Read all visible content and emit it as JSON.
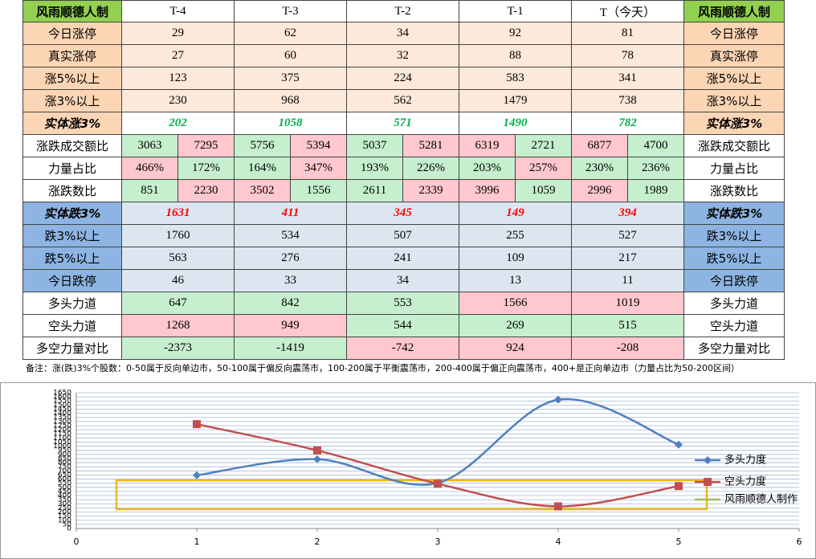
{
  "table": {
    "header": [
      "风雨顺德人制",
      "T-4",
      "T-3",
      "T-2",
      "T-1",
      "T（今天）",
      "风雨顺德人制"
    ],
    "rows": [
      {
        "label": "今日涨停",
        "values": [
          29,
          62,
          34,
          92,
          81
        ]
      },
      {
        "label": "真实涨停",
        "values": [
          27,
          60,
          32,
          88,
          78
        ]
      },
      {
        "label": "涨5%以上",
        "values": [
          123,
          375,
          224,
          583,
          341
        ]
      },
      {
        "label": "涨3%以上",
        "values": [
          230,
          968,
          562,
          1479,
          738
        ]
      },
      {
        "label": "实体涨3%",
        "values": [
          202,
          1058,
          571,
          1490,
          782
        ]
      },
      {
        "label": "涨跌成交额比",
        "values": [
          [
            3063,
            7295
          ],
          [
            5756,
            5394
          ],
          [
            5037,
            5281
          ],
          [
            6319,
            2721
          ],
          [
            6877,
            4700
          ]
        ],
        "colors": [
          [
            "#c6efce",
            "#ffc7ce"
          ],
          [
            "#c6efce",
            "#ffc7ce"
          ],
          [
            "#c6efce",
            "#ffc7ce"
          ],
          [
            "#ffc7ce",
            "#c6efce"
          ],
          [
            "#ffc7ce",
            "#c6efce"
          ]
        ]
      },
      {
        "label": "力量占比",
        "values": [
          [
            "466%",
            "172%"
          ],
          [
            "164%",
            "347%"
          ],
          [
            "193%",
            "226%"
          ],
          [
            "203%",
            "257%"
          ],
          [
            "230%",
            "236%"
          ]
        ],
        "colors": [
          [
            "#ffc7ce",
            "#c6efce"
          ],
          [
            "#c6efce",
            "#ffc7ce"
          ],
          [
            "#c6efce",
            "#c6efce"
          ],
          [
            "#c6efce",
            "#ffc7ce"
          ],
          [
            "#c6efce",
            "#c6efce"
          ]
        ]
      },
      {
        "label": "涨跌数比",
        "values": [
          [
            851,
            2230
          ],
          [
            3502,
            1556
          ],
          [
            2611,
            2339
          ],
          [
            3996,
            1059
          ],
          [
            2996,
            1989
          ]
        ],
        "colors": [
          [
            "#c6efce",
            "#ffc7ce"
          ],
          [
            "#ffc7ce",
            "#c6efce"
          ],
          [
            "#c6efce",
            "#ffc7ce"
          ],
          [
            "#ffc7ce",
            "#c6efce"
          ],
          [
            "#ffc7ce",
            "#c6efce"
          ]
        ]
      },
      {
        "label": "实体跌3%",
        "values": [
          1631,
          411,
          345,
          149,
          394
        ]
      },
      {
        "label": "跌3%以上",
        "values": [
          1760,
          534,
          507,
          255,
          527
        ]
      },
      {
        "label": "跌5%以上",
        "values": [
          563,
          276,
          241,
          109,
          217
        ]
      },
      {
        "label": "今日跌停",
        "values": [
          46,
          33,
          34,
          13,
          11
        ]
      },
      {
        "label": "多头力道",
        "values": [
          647,
          842,
          553,
          1566,
          1019
        ],
        "colors": [
          "#c6efce",
          "#c6efce",
          "#c6efce",
          "#ffc7ce",
          "#ffc7ce"
        ]
      },
      {
        "label": "空头力道",
        "values": [
          1268,
          949,
          544,
          269,
          515
        ],
        "colors": [
          "#ffc7ce",
          "#ffc7ce",
          "#c6efce",
          "#c6efce",
          "#c6efce"
        ]
      },
      {
        "label": "多空力量对比",
        "values": [
          -2373,
          -1419,
          -742,
          924,
          -208
        ],
        "colors": [
          "#c6efce",
          "#c6efce",
          "#ffc7ce",
          "#ffc7ce",
          "#ffc7ce"
        ]
      }
    ],
    "note": "备注：涨(跌)3%个股数：0-50属于反向单边市，50-100属于偏反向震荡市，100-200属于平衡震荡市，200-400属于偏正向震荡市，400+是正向单边市（力量占比为50-200区间）"
  },
  "chart_data": {
    "type": "line",
    "x": [
      1,
      2,
      3,
      4,
      5
    ],
    "series": [
      {
        "name": "多头力度",
        "color": "#4f81bd",
        "values": [
          647,
          842,
          553,
          1566,
          1019
        ]
      },
      {
        "name": "空头力度",
        "color": "#c0504d",
        "values": [
          1268,
          949,
          544,
          269,
          515
        ]
      }
    ],
    "legend_extra": {
      "name": "风雨顺德人制作",
      "color": "#9bbb59"
    },
    "xlim": [
      0,
      6
    ],
    "xticks": [
      0,
      1,
      2,
      3,
      4,
      5,
      6
    ],
    "ylim": [
      0,
      1650
    ],
    "yticks": [
      0,
      50,
      100,
      150,
      200,
      250,
      300,
      350,
      400,
      450,
      500,
      550,
      600,
      650,
      700,
      750,
      800,
      850,
      900,
      950,
      1000,
      1050,
      1100,
      1150,
      1200,
      1250,
      1300,
      1350,
      1400,
      1450,
      1500,
      1550,
      1600,
      1650
    ],
    "grid": true,
    "legend": "right"
  }
}
